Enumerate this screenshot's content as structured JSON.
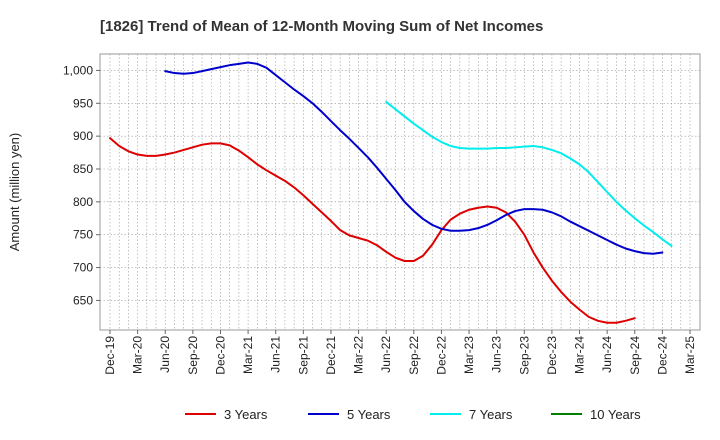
{
  "chart_data": {
    "type": "line",
    "title": "[1826]  Trend of Mean of 12-Month Moving Sum of Net Incomes",
    "xlabel": "",
    "ylabel": "Amount (million yen)",
    "ylim": [
      605,
      1025
    ],
    "yticks": [
      650,
      700,
      750,
      800,
      850,
      900,
      950,
      1000
    ],
    "ytick_labels": [
      "650",
      "700",
      "750",
      "800",
      "850",
      "900",
      "950",
      "1,000"
    ],
    "xticks": [
      "Dec-19",
      "Mar-20",
      "Jun-20",
      "Sep-20",
      "Dec-20",
      "Mar-21",
      "Jun-21",
      "Sep-21",
      "Dec-21",
      "Mar-22",
      "Jun-22",
      "Sep-22",
      "Dec-22",
      "Mar-23",
      "Jun-23",
      "Sep-23",
      "Dec-23",
      "Mar-24",
      "Jun-24",
      "Sep-24",
      "Dec-24",
      "Mar-25"
    ],
    "grid": true,
    "legend_position": "bottom",
    "series": [
      {
        "name": "3 Years",
        "color": "#dd0000",
        "start_index": 0,
        "values": [
          897,
          885,
          877,
          872,
          870,
          870,
          872,
          875,
          879,
          883,
          887,
          889,
          889,
          886,
          878,
          868,
          857,
          848,
          840,
          832,
          822,
          810,
          797,
          784,
          771,
          757,
          749,
          745,
          741,
          734,
          724,
          715,
          710,
          710,
          718,
          735,
          757,
          773,
          782,
          788,
          791,
          793,
          791,
          784,
          770,
          750,
          723,
          700,
          680,
          663,
          648,
          636,
          625,
          619,
          616,
          616,
          619,
          623
        ]
      },
      {
        "name": "5 Years",
        "color": "#0000cc",
        "start_index": 6,
        "values": [
          999,
          996,
          995,
          996,
          999,
          1002,
          1005,
          1008,
          1010,
          1012,
          1010,
          1004,
          993,
          982,
          971,
          961,
          950,
          937,
          923,
          909,
          896,
          882,
          868,
          852,
          835,
          818,
          800,
          786,
          774,
          765,
          759,
          756,
          756,
          757,
          760,
          765,
          772,
          780,
          786,
          789,
          789,
          788,
          784,
          778,
          770,
          763,
          756,
          749,
          742,
          735,
          729,
          725,
          722,
          721,
          723
        ]
      },
      {
        "name": "7 Years",
        "color": "#00eeee",
        "start_index": 30,
        "values": [
          952,
          941,
          930,
          919,
          909,
          899,
          891,
          885,
          882,
          881,
          881,
          881,
          882,
          882,
          883,
          884,
          885,
          883,
          879,
          874,
          866,
          857,
          845,
          830,
          815,
          800,
          787,
          775,
          764,
          754,
          743,
          733
        ]
      },
      {
        "name": "10 Years",
        "color": "#008000",
        "start_index": 0,
        "values": []
      }
    ]
  }
}
